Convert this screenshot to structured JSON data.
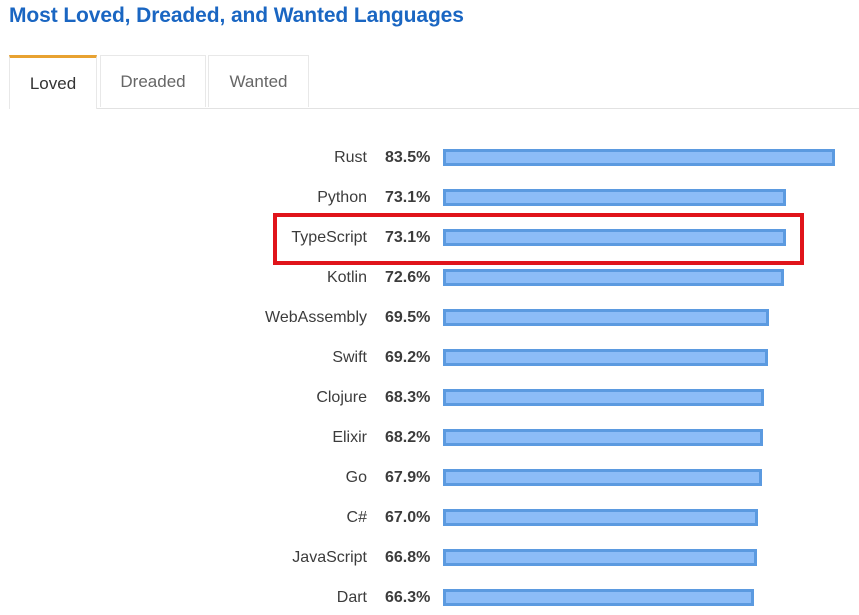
{
  "title": "Most Loved, Dreaded, and Wanted Languages",
  "tabs": [
    {
      "label": "Loved",
      "active": true
    },
    {
      "label": "Dreaded",
      "active": false
    },
    {
      "label": "Wanted",
      "active": false
    }
  ],
  "highlight": {
    "label": "TypeScript",
    "color": "#e0141a"
  },
  "colors": {
    "title": "#1a66c2",
    "bar_fill": "#8cbcf7",
    "bar_border": "#5b9ae0",
    "active_tab_accent": "#e8a231"
  },
  "rows": [
    {
      "lang": "Rust",
      "pct": "83.5%"
    },
    {
      "lang": "Python",
      "pct": "73.1%"
    },
    {
      "lang": "TypeScript",
      "pct": "73.1%"
    },
    {
      "lang": "Kotlin",
      "pct": "72.6%"
    },
    {
      "lang": "WebAssembly",
      "pct": "69.5%"
    },
    {
      "lang": "Swift",
      "pct": "69.2%"
    },
    {
      "lang": "Clojure",
      "pct": "68.3%"
    },
    {
      "lang": "Elixir",
      "pct": "68.2%"
    },
    {
      "lang": "Go",
      "pct": "67.9%"
    },
    {
      "lang": "C#",
      "pct": "67.0%"
    },
    {
      "lang": "JavaScript",
      "pct": "66.8%"
    },
    {
      "lang": "Dart",
      "pct": "66.3%"
    }
  ],
  "chart_data": {
    "type": "bar",
    "orientation": "horizontal",
    "title": "Most Loved, Dreaded, and Wanted Languages",
    "selected_tab": "Loved",
    "categories": [
      "Rust",
      "Python",
      "TypeScript",
      "Kotlin",
      "WebAssembly",
      "Swift",
      "Clojure",
      "Elixir",
      "Go",
      "C#",
      "JavaScript",
      "Dart"
    ],
    "values": [
      83.5,
      73.1,
      73.1,
      72.6,
      69.5,
      69.2,
      68.3,
      68.2,
      67.9,
      67.0,
      66.8,
      66.3
    ],
    "unit": "%",
    "xlabel": "",
    "ylabel": "",
    "grid": false,
    "legend": null,
    "annotations": [
      "TypeScript row highlighted with red box"
    ]
  }
}
